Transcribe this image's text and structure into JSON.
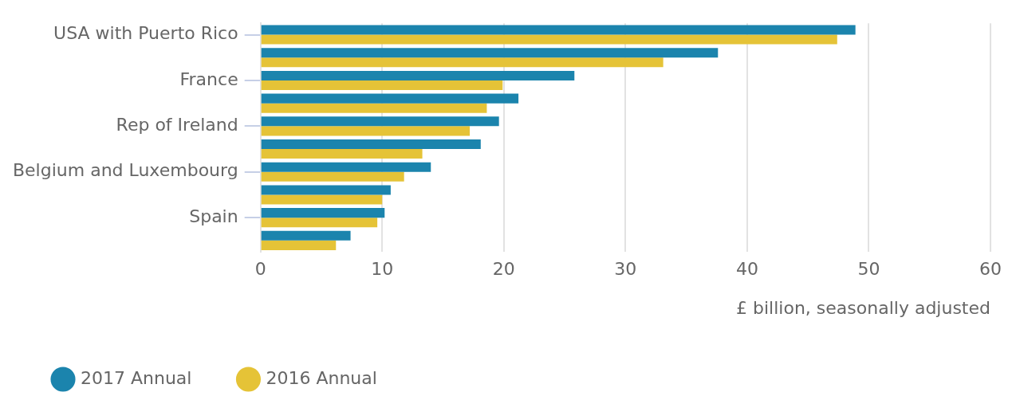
{
  "chart_data": {
    "type": "bar",
    "orientation": "horizontal",
    "categories": [
      "USA with Puerto Rico",
      null,
      "France",
      null,
      "Rep of Ireland",
      null,
      "Belgium and Luxembourg",
      null,
      "Spain",
      null
    ],
    "series": [
      {
        "name": "2017 Annual",
        "color": "#1b84ad",
        "values": [
          48.9,
          37.6,
          25.8,
          21.2,
          19.6,
          18.1,
          14.0,
          10.7,
          10.2,
          7.4
        ]
      },
      {
        "name": "2016 Annual",
        "color": "#e5c337",
        "values": [
          47.4,
          33.1,
          19.9,
          18.6,
          17.2,
          13.3,
          11.8,
          10.0,
          9.6,
          6.2
        ]
      }
    ],
    "xlim": [
      0,
      60
    ],
    "xticks": [
      0,
      10,
      20,
      30,
      40,
      50,
      60
    ],
    "xlabel": "£ billion, seasonally adjusted",
    "grid": "x",
    "legend": "bottom left"
  }
}
